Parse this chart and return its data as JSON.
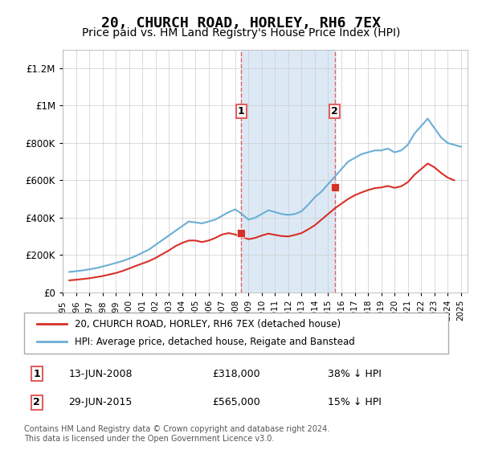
{
  "title": "20, CHURCH ROAD, HORLEY, RH6 7EX",
  "subtitle": "Price paid vs. HM Land Registry's House Price Index (HPI)",
  "title_fontsize": 13,
  "subtitle_fontsize": 10,
  "ylabel_ticks": [
    "£0",
    "£200K",
    "£400K",
    "£600K",
    "£800K",
    "£1M",
    "£1.2M"
  ],
  "ytick_vals": [
    0,
    200000,
    400000,
    600000,
    800000,
    1000000,
    1200000
  ],
  "ylim": [
    0,
    1300000
  ],
  "xlim_start": 1995.0,
  "xlim_end": 2025.5,
  "hpi_color": "#6baed6",
  "price_color": "#d73027",
  "sale1_date": 2008.45,
  "sale1_price": 318000,
  "sale1_label": "1",
  "sale1_hpi_price": 515000,
  "sale2_date": 2015.49,
  "sale2_price": 565000,
  "sale2_label": "2",
  "sale2_hpi_price": 663000,
  "shade_color": "#dce9f5",
  "dashed_color": "#e06060",
  "footer": "Contains HM Land Registry data © Crown copyright and database right 2024.\nThis data is licensed under the Open Government Licence v3.0.",
  "legend1_label": "20, CHURCH ROAD, HORLEY, RH6 7EX (detached house)",
  "legend2_label": "HPI: Average price, detached house, Reigate and Banstead",
  "table_rows": [
    {
      "num": "1",
      "date": "13-JUN-2008",
      "price": "£318,000",
      "pct": "38% ↓ HPI"
    },
    {
      "num": "2",
      "date": "29-JUN-2015",
      "price": "£565,000",
      "pct": "15% ↓ HPI"
    }
  ],
  "hpi_data": {
    "years": [
      1995.5,
      1996.5,
      1997.5,
      1998.5,
      1999.5,
      2000.5,
      2001.5,
      2002.5,
      2003.5,
      2004.5,
      2005.5,
      2006.5,
      2007.5,
      2008.0,
      2008.5,
      2009.0,
      2009.5,
      2010.0,
      2010.5,
      2011.0,
      2011.5,
      2012.0,
      2012.5,
      2013.0,
      2013.5,
      2014.0,
      2014.5,
      2015.0,
      2015.5,
      2016.0,
      2016.5,
      2017.0,
      2017.5,
      2018.0,
      2018.5,
      2019.0,
      2019.5,
      2020.0,
      2020.5,
      2021.0,
      2021.5,
      2022.0,
      2022.5,
      2023.0,
      2023.5,
      2024.0,
      2024.5,
      2025.0
    ],
    "values": [
      110000,
      118000,
      130000,
      148000,
      168000,
      195000,
      230000,
      280000,
      330000,
      380000,
      370000,
      390000,
      430000,
      445000,
      420000,
      390000,
      400000,
      420000,
      440000,
      430000,
      420000,
      415000,
      420000,
      435000,
      470000,
      510000,
      540000,
      580000,
      620000,
      660000,
      700000,
      720000,
      740000,
      750000,
      760000,
      760000,
      770000,
      750000,
      760000,
      790000,
      850000,
      890000,
      930000,
      880000,
      830000,
      800000,
      790000,
      780000
    ]
  },
  "price_data": {
    "years": [
      1995.5,
      1996.0,
      1996.5,
      1997.0,
      1997.5,
      1998.0,
      1998.5,
      1999.0,
      1999.5,
      2000.0,
      2000.5,
      2001.0,
      2001.5,
      2002.0,
      2002.5,
      2003.0,
      2003.5,
      2004.0,
      2004.5,
      2005.0,
      2005.5,
      2006.0,
      2006.5,
      2007.0,
      2007.5,
      2008.0,
      2008.5,
      2009.0,
      2009.5,
      2010.0,
      2010.5,
      2011.0,
      2011.5,
      2012.0,
      2012.5,
      2013.0,
      2013.5,
      2014.0,
      2014.5,
      2015.0,
      2015.5,
      2016.0,
      2016.5,
      2017.0,
      2017.5,
      2018.0,
      2018.5,
      2019.0,
      2019.5,
      2020.0,
      2020.5,
      2021.0,
      2021.5,
      2022.0,
      2022.5,
      2023.0,
      2023.5,
      2024.0,
      2024.5
    ],
    "values": [
      65000,
      68000,
      72000,
      76000,
      82000,
      88000,
      96000,
      104000,
      115000,
      128000,
      142000,
      155000,
      168000,
      185000,
      205000,
      225000,
      248000,
      265000,
      278000,
      278000,
      270000,
      278000,
      292000,
      310000,
      318000,
      310000,
      298000,
      285000,
      292000,
      305000,
      315000,
      308000,
      302000,
      300000,
      308000,
      318000,
      338000,
      360000,
      390000,
      420000,
      450000,
      475000,
      500000,
      520000,
      535000,
      548000,
      558000,
      562000,
      570000,
      560000,
      568000,
      590000,
      630000,
      660000,
      690000,
      670000,
      640000,
      615000,
      600000
    ]
  }
}
